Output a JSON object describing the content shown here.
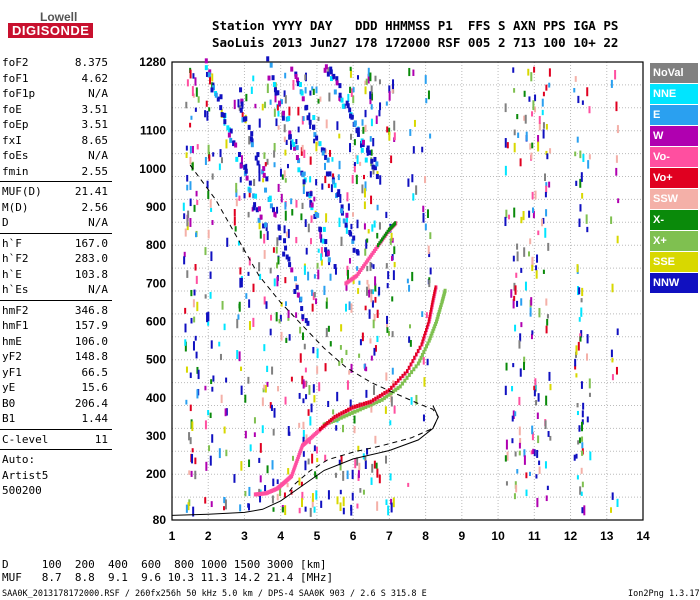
{
  "logo": {
    "top": "Lowell",
    "main": "DIGISONDE"
  },
  "header": {
    "line1": "Station YYYY DAY   DDD HHMMSS P1  FFS S AXN PPS IGA PS",
    "line2": "SaoLuis 2013 Jun27 178 172000 RSF 005 2 713 100 10+ 22"
  },
  "params": {
    "group1": [
      {
        "label": "foF2",
        "value": "8.375"
      },
      {
        "label": "foF1",
        "value": "4.62"
      },
      {
        "label": "foF1p",
        "value": "N/A"
      },
      {
        "label": "foE",
        "value": "3.51"
      },
      {
        "label": "foEp",
        "value": "3.51"
      },
      {
        "label": "fxI",
        "value": "8.65"
      },
      {
        "label": "foEs",
        "value": "N/A"
      },
      {
        "label": "fmin",
        "value": "2.55"
      }
    ],
    "group2": [
      {
        "label": "MUF(D)",
        "value": "21.41"
      },
      {
        "label": "M(D)",
        "value": "2.56"
      },
      {
        "label": "D",
        "value": "N/A"
      }
    ],
    "group3": [
      {
        "label": "h`F",
        "value": "167.0"
      },
      {
        "label": "h`F2",
        "value": "283.0"
      },
      {
        "label": "h`E",
        "value": "103.8"
      },
      {
        "label": "h`Es",
        "value": "N/A"
      }
    ],
    "group4": [
      {
        "label": "hmF2",
        "value": "346.8"
      },
      {
        "label": "hmF1",
        "value": "157.9"
      },
      {
        "label": "hmE",
        "value": "106.0"
      },
      {
        "label": "yF2",
        "value": "148.8"
      },
      {
        "label": "yF1",
        "value": "66.5"
      },
      {
        "label": "yE",
        "value": "15.6"
      },
      {
        "label": "B0",
        "value": "206.4"
      },
      {
        "label": "B1",
        "value": "1.44"
      }
    ],
    "clevel": {
      "label": "C-level",
      "value": "11"
    },
    "auto": [
      "Auto:",
      "Artist5",
      "500200"
    ]
  },
  "legend": [
    {
      "label": "NoVal",
      "color": "#808080"
    },
    {
      "label": "NNE",
      "color": "#00e5ff"
    },
    {
      "label": "E",
      "color": "#2aa0f0"
    },
    {
      "label": "W",
      "color": "#b000b0"
    },
    {
      "label": "Vo-",
      "color": "#ff4fa0"
    },
    {
      "label": "Vo+",
      "color": "#e00020"
    },
    {
      "label": "SSW",
      "color": "#f4b0a8"
    },
    {
      "label": "X-",
      "color": "#0a8a0a"
    },
    {
      "label": "X+",
      "color": "#7fc050"
    },
    {
      "label": "SSE",
      "color": "#d8d800"
    },
    {
      "label": "NNW",
      "color": "#1010c0"
    }
  ],
  "bottom": {
    "line1": "D     100  200  400  600  800 1000 1500 3000 [km]",
    "line2": "MUF   8.7  8.8  9.1  9.6 10.3 11.3 14.2 21.4 [MHz]"
  },
  "footer": {
    "left": "SAA0K_2013178172000.RSF / 260fx256h 50 kHz 5.0 km / DPS-4 SAA0K 903 / 2.6 S 315.8 E",
    "right": "Ion2Png 1.3.17"
  },
  "chart_data": {
    "type": "scatter",
    "x_ticks": [
      1,
      2,
      3,
      4,
      5,
      6,
      7,
      8,
      9,
      10,
      11,
      12,
      13,
      14
    ],
    "y_ticks": [
      80,
      200,
      300,
      400,
      500,
      600,
      700,
      800,
      900,
      1000,
      1100,
      1280
    ],
    "xlim": [
      1,
      14
    ],
    "ylim": [
      80,
      1280
    ],
    "grid": true,
    "traces": {
      "o_trace": [
        [
          3.3,
          147
        ],
        [
          3.6,
          150
        ],
        [
          3.9,
          162
        ],
        [
          4.1,
          178
        ],
        [
          4.3,
          195
        ],
        [
          4.45,
          235
        ],
        [
          4.6,
          275
        ],
        [
          4.8,
          292
        ],
        [
          5.1,
          318
        ],
        [
          5.5,
          350
        ],
        [
          6.0,
          375
        ],
        [
          6.5,
          390
        ],
        [
          7.0,
          420
        ],
        [
          7.5,
          470
        ],
        [
          7.9,
          540
        ],
        [
          8.1,
          600
        ],
        [
          8.2,
          650
        ],
        [
          8.3,
          695
        ]
      ],
      "x_trace": [
        [
          5.2,
          330
        ],
        [
          5.6,
          345
        ],
        [
          6.2,
          370
        ],
        [
          6.8,
          395
        ],
        [
          7.3,
          430
        ],
        [
          7.8,
          490
        ],
        [
          8.1,
          550
        ],
        [
          8.3,
          600
        ],
        [
          8.45,
          650
        ],
        [
          8.55,
          685
        ]
      ],
      "o2_trace": [
        [
          5.8,
          700
        ],
        [
          6.1,
          720
        ],
        [
          6.4,
          760
        ],
        [
          6.7,
          800
        ],
        [
          7.0,
          840
        ],
        [
          7.2,
          860
        ]
      ],
      "dashed_profile": [
        [
          1.5,
          1010
        ],
        [
          2.2,
          920
        ],
        [
          2.8,
          820
        ],
        [
          3.4,
          720
        ],
        [
          4.0,
          650
        ],
        [
          4.6,
          590
        ],
        [
          5.2,
          530
        ],
        [
          5.8,
          480
        ],
        [
          6.5,
          440
        ],
        [
          7.2,
          410
        ],
        [
          7.8,
          385
        ],
        [
          8.2,
          370
        ],
        [
          8.35,
          350
        ],
        [
          8.2,
          320
        ],
        [
          7.6,
          295
        ],
        [
          6.8,
          275
        ],
        [
          6.0,
          258
        ],
        [
          5.3,
          238
        ],
        [
          4.8,
          208
        ],
        [
          4.4,
          175
        ],
        [
          4.2,
          150
        ]
      ],
      "solid_profile": [
        [
          1.0,
          92
        ],
        [
          2.0,
          95
        ],
        [
          3.0,
          100
        ],
        [
          3.5,
          108
        ],
        [
          4.0,
          130
        ],
        [
          4.6,
          170
        ],
        [
          5.2,
          210
        ],
        [
          6.0,
          240
        ],
        [
          7.0,
          262
        ],
        [
          7.8,
          290
        ],
        [
          8.2,
          320
        ],
        [
          8.35,
          350
        ],
        [
          8.2,
          380
        ]
      ]
    }
  }
}
